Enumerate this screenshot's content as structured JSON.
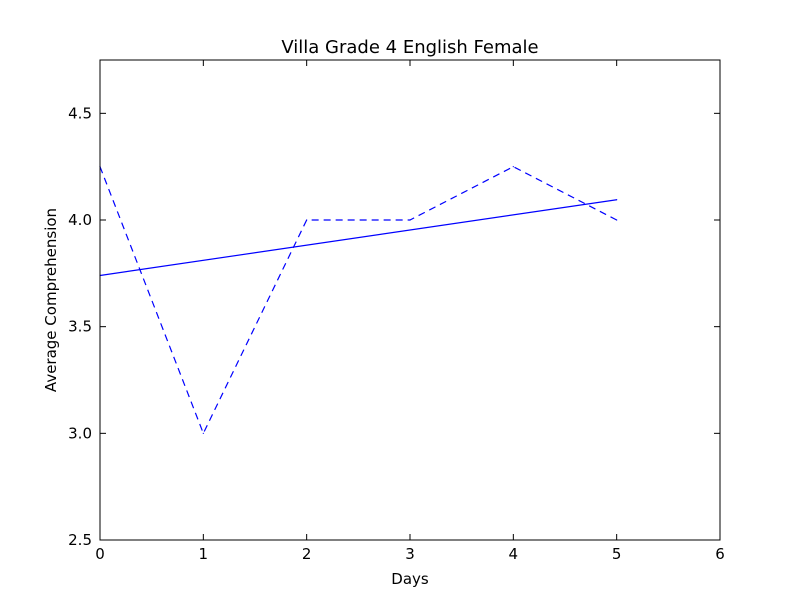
{
  "chart_data": {
    "type": "line",
    "title": "Villa Grade 4 English Female",
    "xlabel": "Days",
    "ylabel": "Average Comprehension",
    "xlim": [
      0,
      6
    ],
    "ylim": [
      2.5,
      4.75
    ],
    "xticks": [
      0,
      1,
      2,
      3,
      4,
      5,
      6
    ],
    "xtick_labels": [
      "0",
      "1",
      "2",
      "3",
      "4",
      "5",
      "6"
    ],
    "yticks": [
      2.5,
      3.0,
      3.5,
      4.0,
      4.5
    ],
    "ytick_labels": [
      "2.5",
      "3.0",
      "3.5",
      "4.0",
      "4.5"
    ],
    "grid": false,
    "series": [
      {
        "style": "dashed",
        "color": "#0000ff",
        "x": [
          0,
          1,
          2,
          3,
          4,
          5
        ],
        "y": [
          4.25,
          3.0,
          4.0,
          4.0,
          4.25,
          4.0
        ]
      },
      {
        "style": "solid",
        "color": "#0000ff",
        "x": [
          0,
          5
        ],
        "y": [
          3.74,
          4.095
        ]
      }
    ]
  }
}
